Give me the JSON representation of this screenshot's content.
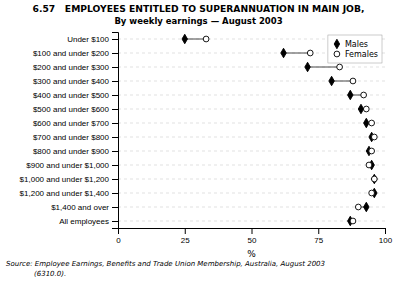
{
  "chart_data": {
    "type": "dot",
    "orientation": "horizontal",
    "title": "6.57   EMPLOYEES ENTITLED TO SUPERANNUATION IN MAIN JOB,",
    "subtitle": "By weekly earnings — August 2003",
    "categories": [
      "Under $100",
      "$100 and under $200",
      "$200 and under $300",
      "$300 and under $400",
      "$400 and under $500",
      "$500 and under $600",
      "$600 and under $700",
      "$700 and under $800",
      "$800 and under $900",
      "$900 and under $1,000",
      "$1,000 and under $1,200",
      "$1,200 and under $1,400",
      "$1,400 and over",
      "All employees"
    ],
    "series": [
      {
        "name": "Males",
        "color": "#000000",
        "marker": "diamond",
        "values": [
          25,
          62,
          71,
          80,
          87,
          91,
          93,
          95,
          94,
          95,
          96,
          96,
          93,
          87
        ]
      },
      {
        "name": "Females",
        "color": "#000000",
        "marker": "open-circle",
        "values": [
          33,
          72,
          83,
          88,
          92,
          93,
          95,
          96,
          95,
          94,
          96,
          95,
          90,
          88
        ]
      }
    ],
    "x_label": "%",
    "xlim": [
      0,
      100
    ],
    "xticks": [
      0,
      25,
      50,
      75,
      100
    ],
    "grid": true,
    "legend": "top-right",
    "annotations": [
      "Source: Employee Earnings, Benefits and Trade Union Membership, Australia, August 2003",
      "(6310.0)."
    ]
  }
}
